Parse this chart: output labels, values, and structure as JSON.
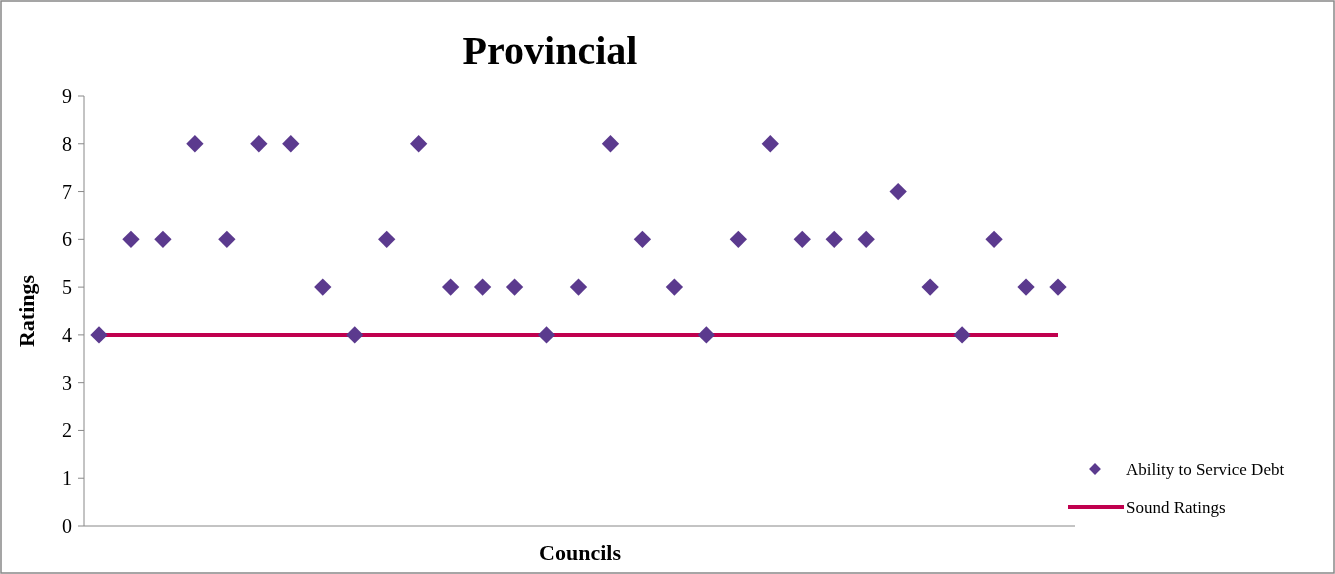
{
  "chart_data": {
    "type": "scatter",
    "title": "Provincial",
    "xlabel": "Councils",
    "ylabel": "Ratings",
    "categories": [
      null,
      null,
      null,
      null,
      null,
      null,
      null,
      null,
      null,
      null,
      null,
      null,
      null,
      null,
      null,
      null,
      null,
      null,
      null,
      null,
      null,
      null,
      null,
      null,
      null,
      null,
      null,
      null,
      null,
      null,
      null
    ],
    "series": [
      {
        "name": "Ability to Service Debt",
        "marker": "diamond",
        "color": "#5b3a8e",
        "values": [
          4,
          6,
          6,
          8,
          6,
          8,
          8,
          5,
          4,
          6,
          8,
          5,
          5,
          5,
          4,
          5,
          8,
          6,
          5,
          4,
          6,
          8,
          6,
          6,
          6,
          7,
          5,
          4,
          6,
          5,
          5
        ]
      },
      {
        "name": "Sound Ratings",
        "type": "line",
        "marker": "none",
        "color": "#c0004e",
        "values": [
          4,
          4,
          4,
          4,
          4,
          4,
          4,
          4,
          4,
          4,
          4,
          4,
          4,
          4,
          4,
          4,
          4,
          4,
          4,
          4,
          4,
          4,
          4,
          4,
          4,
          4,
          4,
          4,
          4,
          4,
          4
        ]
      }
    ],
    "ylim": [
      0,
      9
    ],
    "yticks": [
      0,
      1,
      2,
      3,
      4,
      5,
      6,
      7,
      8,
      9
    ],
    "grid": false,
    "legend": "right",
    "line_style": "solid"
  }
}
